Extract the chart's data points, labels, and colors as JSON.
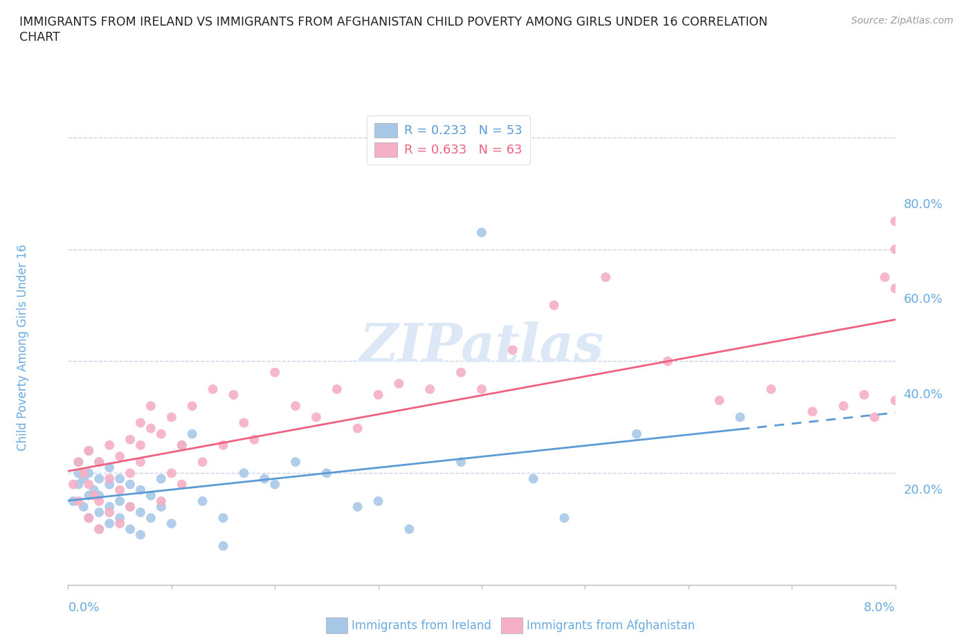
{
  "title_line1": "IMMIGRANTS FROM IRELAND VS IMMIGRANTS FROM AFGHANISTAN CHILD POVERTY AMONG GIRLS UNDER 16 CORRELATION",
  "title_line2": "CHART",
  "source": "Source: ZipAtlas.com",
  "ylabel": "Child Poverty Among Girls Under 16",
  "xmin": 0.0,
  "xmax": 0.08,
  "ymin": 0.0,
  "ymax": 0.85,
  "ireland_R": 0.233,
  "ireland_N": 53,
  "afghanistan_R": 0.633,
  "afghanistan_N": 63,
  "ireland_color": "#a8c8e8",
  "afghanistan_color": "#f5b0c5",
  "ireland_line_color": "#5b9bd5",
  "afghanistan_line_color": "#f06080",
  "background_color": "#ffffff",
  "grid_color": "#c8d4e8",
  "title_color": "#222222",
  "axis_label_color": "#6aaae0",
  "watermark_color": "#dce8f5",
  "ireland_scatter_x": [
    0.0005,
    0.001,
    0.001,
    0.001,
    0.0015,
    0.0015,
    0.002,
    0.002,
    0.002,
    0.002,
    0.0025,
    0.003,
    0.003,
    0.003,
    0.003,
    0.003,
    0.004,
    0.004,
    0.004,
    0.004,
    0.005,
    0.005,
    0.005,
    0.006,
    0.006,
    0.006,
    0.007,
    0.007,
    0.007,
    0.008,
    0.008,
    0.009,
    0.009,
    0.01,
    0.011,
    0.012,
    0.013,
    0.015,
    0.015,
    0.017,
    0.019,
    0.02,
    0.022,
    0.025,
    0.028,
    0.03,
    0.033,
    0.038,
    0.04,
    0.045,
    0.048,
    0.055,
    0.065
  ],
  "ireland_scatter_y": [
    0.15,
    0.18,
    0.2,
    0.22,
    0.14,
    0.19,
    0.12,
    0.16,
    0.2,
    0.24,
    0.17,
    0.1,
    0.13,
    0.16,
    0.19,
    0.22,
    0.11,
    0.14,
    0.18,
    0.21,
    0.12,
    0.15,
    0.19,
    0.1,
    0.14,
    0.18,
    0.09,
    0.13,
    0.17,
    0.12,
    0.16,
    0.14,
    0.19,
    0.11,
    0.25,
    0.27,
    0.15,
    0.07,
    0.12,
    0.2,
    0.19,
    0.18,
    0.22,
    0.2,
    0.14,
    0.15,
    0.1,
    0.22,
    0.63,
    0.19,
    0.12,
    0.27,
    0.3
  ],
  "afghanistan_scatter_x": [
    0.0005,
    0.001,
    0.001,
    0.0015,
    0.002,
    0.002,
    0.002,
    0.0025,
    0.003,
    0.003,
    0.003,
    0.004,
    0.004,
    0.004,
    0.005,
    0.005,
    0.005,
    0.006,
    0.006,
    0.006,
    0.007,
    0.007,
    0.007,
    0.008,
    0.008,
    0.009,
    0.009,
    0.01,
    0.01,
    0.011,
    0.011,
    0.012,
    0.013,
    0.014,
    0.015,
    0.016,
    0.017,
    0.018,
    0.02,
    0.022,
    0.024,
    0.026,
    0.028,
    0.03,
    0.032,
    0.035,
    0.038,
    0.04,
    0.043,
    0.047,
    0.052,
    0.058,
    0.063,
    0.068,
    0.072,
    0.075,
    0.077,
    0.078,
    0.079,
    0.08,
    0.08,
    0.08,
    0.08
  ],
  "afghanistan_scatter_y": [
    0.18,
    0.15,
    0.22,
    0.2,
    0.12,
    0.18,
    0.24,
    0.16,
    0.1,
    0.15,
    0.22,
    0.13,
    0.19,
    0.25,
    0.11,
    0.17,
    0.23,
    0.14,
    0.2,
    0.26,
    0.25,
    0.29,
    0.22,
    0.28,
    0.32,
    0.15,
    0.27,
    0.2,
    0.3,
    0.18,
    0.25,
    0.32,
    0.22,
    0.35,
    0.25,
    0.34,
    0.29,
    0.26,
    0.38,
    0.32,
    0.3,
    0.35,
    0.28,
    0.34,
    0.36,
    0.35,
    0.38,
    0.35,
    0.42,
    0.5,
    0.55,
    0.4,
    0.33,
    0.35,
    0.31,
    0.32,
    0.34,
    0.3,
    0.55,
    0.6,
    0.53,
    0.65,
    0.33
  ]
}
